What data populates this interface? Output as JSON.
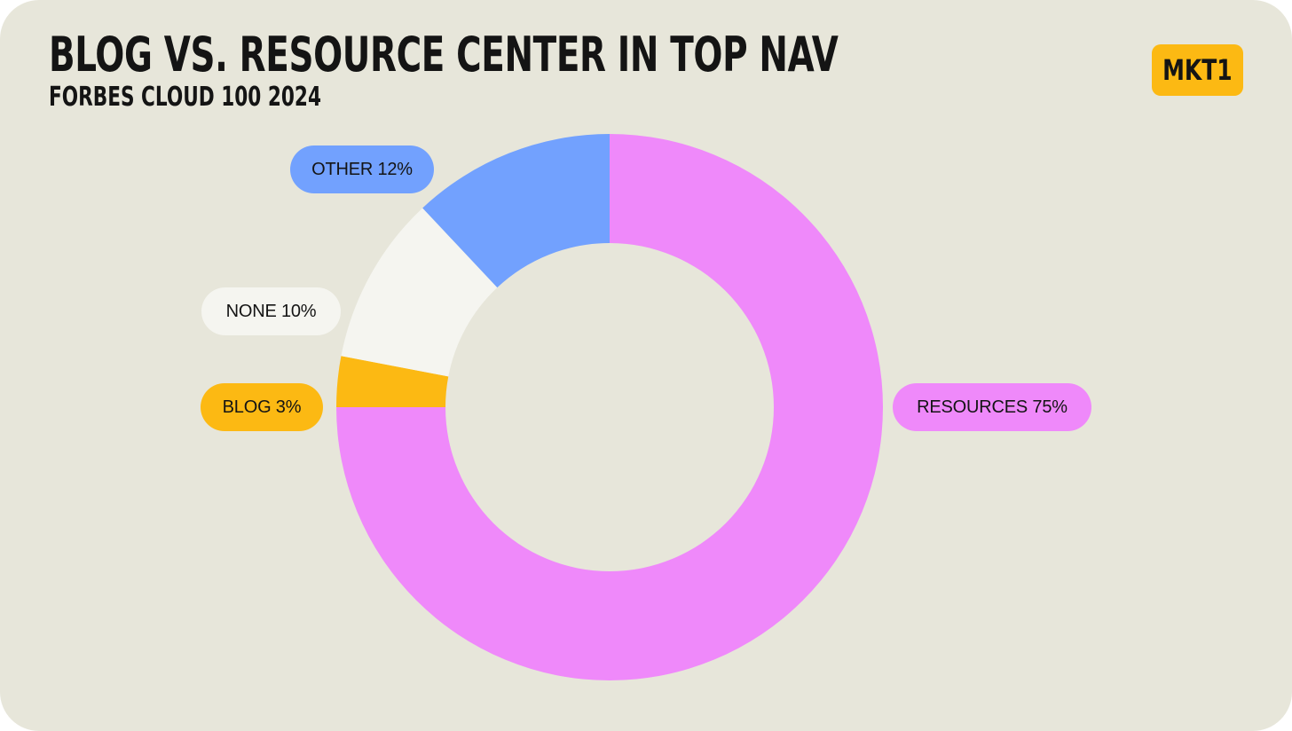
{
  "header": {
    "title": "BLOG VS. RESOURCE CENTER IN TOP NAV",
    "subtitle": "FORBES CLOUD 100 2024"
  },
  "logo": {
    "text": "MKT1",
    "color": "#fcb913"
  },
  "chart_data": {
    "type": "pie",
    "style": "donut",
    "title": "BLOG VS. RESOURCE CENTER IN TOP NAV",
    "subtitle": "FORBES CLOUD 100 2024",
    "slices": [
      {
        "name": "RESOURCES",
        "value": 75,
        "label": "RESOURCES 75%",
        "color": "#ef89fa"
      },
      {
        "name": "BLOG",
        "value": 3,
        "label": "BLOG 3%",
        "color": "#fcb913"
      },
      {
        "name": "NONE",
        "value": 10,
        "label": "NONE 10%",
        "color": "#f5f5f0"
      },
      {
        "name": "OTHER",
        "value": 12,
        "label": "OTHER 12%",
        "color": "#72a1fe"
      }
    ]
  }
}
